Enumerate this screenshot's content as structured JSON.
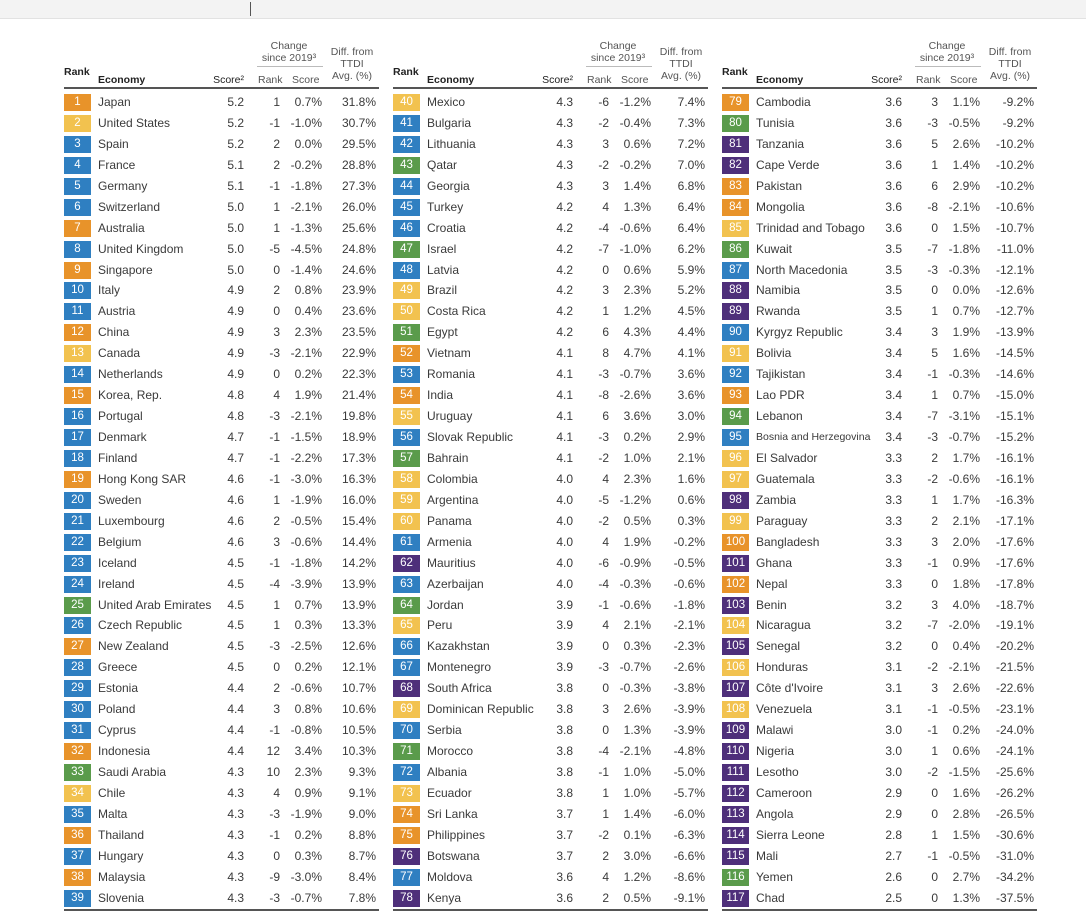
{
  "headers": {
    "rank": "Rank",
    "economy": "Economy",
    "score": "Score²",
    "change_group": [
      "Change",
      "since 2019³"
    ],
    "change_rank": "Rank",
    "change_score": "Score",
    "diff_group": [
      "Diff. from",
      "TTDI",
      "Avg. (%)"
    ]
  },
  "colors": {
    "orange": "#e8932a",
    "yellow": "#f2c24f",
    "blue": "#2f7fc1",
    "green": "#5a9b4b",
    "purple": "#4e2f7a"
  },
  "columns": [
    [
      [
        "1",
        "Japan",
        "5.2",
        "1",
        "0.7%",
        "31.8%",
        "orange"
      ],
      [
        "2",
        "United States",
        "5.2",
        "-1",
        "-1.0%",
        "30.7%",
        "yellow"
      ],
      [
        "3",
        "Spain",
        "5.2",
        "2",
        "0.0%",
        "29.5%",
        "blue"
      ],
      [
        "4",
        "France",
        "5.1",
        "2",
        "-0.2%",
        "28.8%",
        "blue"
      ],
      [
        "5",
        "Germany",
        "5.1",
        "-1",
        "-1.8%",
        "27.3%",
        "blue"
      ],
      [
        "6",
        "Switzerland",
        "5.0",
        "1",
        "-2.1%",
        "26.0%",
        "blue"
      ],
      [
        "7",
        "Australia",
        "5.0",
        "1",
        "-1.3%",
        "25.6%",
        "orange"
      ],
      [
        "8",
        "United Kingdom",
        "5.0",
        "-5",
        "-4.5%",
        "24.8%",
        "blue"
      ],
      [
        "9",
        "Singapore",
        "5.0",
        "0",
        "-1.4%",
        "24.6%",
        "orange"
      ],
      [
        "10",
        "Italy",
        "4.9",
        "2",
        "0.8%",
        "23.9%",
        "blue"
      ],
      [
        "11",
        "Austria",
        "4.9",
        "0",
        "0.4%",
        "23.6%",
        "blue"
      ],
      [
        "12",
        "China",
        "4.9",
        "3",
        "2.3%",
        "23.5%",
        "orange"
      ],
      [
        "13",
        "Canada",
        "4.9",
        "-3",
        "-2.1%",
        "22.9%",
        "yellow"
      ],
      [
        "14",
        "Netherlands",
        "4.9",
        "0",
        "0.2%",
        "22.3%",
        "blue"
      ],
      [
        "15",
        "Korea, Rep.",
        "4.8",
        "4",
        "1.9%",
        "21.4%",
        "orange"
      ],
      [
        "16",
        "Portugal",
        "4.8",
        "-3",
        "-2.1%",
        "19.8%",
        "blue"
      ],
      [
        "17",
        "Denmark",
        "4.7",
        "-1",
        "-1.5%",
        "18.9%",
        "blue"
      ],
      [
        "18",
        "Finland",
        "4.7",
        "-1",
        "-2.2%",
        "17.3%",
        "blue"
      ],
      [
        "19",
        "Hong Kong SAR",
        "4.6",
        "-1",
        "-3.0%",
        "16.3%",
        "orange"
      ],
      [
        "20",
        "Sweden",
        "4.6",
        "1",
        "-1.9%",
        "16.0%",
        "blue"
      ],
      [
        "21",
        "Luxembourg",
        "4.6",
        "2",
        "-0.5%",
        "15.4%",
        "blue"
      ],
      [
        "22",
        "Belgium",
        "4.6",
        "3",
        "-0.6%",
        "14.4%",
        "blue"
      ],
      [
        "23",
        "Iceland",
        "4.5",
        "-1",
        "-1.8%",
        "14.2%",
        "blue"
      ],
      [
        "24",
        "Ireland",
        "4.5",
        "-4",
        "-3.9%",
        "13.9%",
        "blue"
      ],
      [
        "25",
        "United Arab Emirates",
        "4.5",
        "1",
        "0.7%",
        "13.9%",
        "green"
      ],
      [
        "26",
        "Czech Republic",
        "4.5",
        "1",
        "0.3%",
        "13.3%",
        "blue"
      ],
      [
        "27",
        "New Zealand",
        "4.5",
        "-3",
        "-2.5%",
        "12.6%",
        "orange"
      ],
      [
        "28",
        "Greece",
        "4.5",
        "0",
        "0.2%",
        "12.1%",
        "blue"
      ],
      [
        "29",
        "Estonia",
        "4.4",
        "2",
        "-0.6%",
        "10.7%",
        "blue"
      ],
      [
        "30",
        "Poland",
        "4.4",
        "3",
        "0.8%",
        "10.6%",
        "blue"
      ],
      [
        "31",
        "Cyprus",
        "4.4",
        "-1",
        "-0.8%",
        "10.5%",
        "blue"
      ],
      [
        "32",
        "Indonesia",
        "4.4",
        "12",
        "3.4%",
        "10.3%",
        "orange"
      ],
      [
        "33",
        "Saudi Arabia",
        "4.3",
        "10",
        "2.3%",
        "9.3%",
        "green"
      ],
      [
        "34",
        "Chile",
        "4.3",
        "4",
        "0.9%",
        "9.1%",
        "yellow"
      ],
      [
        "35",
        "Malta",
        "4.3",
        "-3",
        "-1.9%",
        "9.0%",
        "blue"
      ],
      [
        "36",
        "Thailand",
        "4.3",
        "-1",
        "0.2%",
        "8.8%",
        "orange"
      ],
      [
        "37",
        "Hungary",
        "4.3",
        "0",
        "0.3%",
        "8.7%",
        "blue"
      ],
      [
        "38",
        "Malaysia",
        "4.3",
        "-9",
        "-3.0%",
        "8.4%",
        "orange"
      ],
      [
        "39",
        "Slovenia",
        "4.3",
        "-3",
        "-0.7%",
        "7.8%",
        "blue"
      ]
    ],
    [
      [
        "40",
        "Mexico",
        "4.3",
        "-6",
        "-1.2%",
        "7.4%",
        "yellow"
      ],
      [
        "41",
        "Bulgaria",
        "4.3",
        "-2",
        "-0.4%",
        "7.3%",
        "blue"
      ],
      [
        "42",
        "Lithuania",
        "4.3",
        "3",
        "0.6%",
        "7.2%",
        "blue"
      ],
      [
        "43",
        "Qatar",
        "4.3",
        "-2",
        "-0.2%",
        "7.0%",
        "green"
      ],
      [
        "44",
        "Georgia",
        "4.3",
        "3",
        "1.4%",
        "6.8%",
        "blue"
      ],
      [
        "45",
        "Turkey",
        "4.2",
        "4",
        "1.3%",
        "6.4%",
        "blue"
      ],
      [
        "46",
        "Croatia",
        "4.2",
        "-4",
        "-0.6%",
        "6.4%",
        "blue"
      ],
      [
        "47",
        "Israel",
        "4.2",
        "-7",
        "-1.0%",
        "6.2%",
        "green"
      ],
      [
        "48",
        "Latvia",
        "4.2",
        "0",
        "0.6%",
        "5.9%",
        "blue"
      ],
      [
        "49",
        "Brazil",
        "4.2",
        "3",
        "2.3%",
        "5.2%",
        "yellow"
      ],
      [
        "50",
        "Costa Rica",
        "4.2",
        "1",
        "1.2%",
        "4.5%",
        "yellow"
      ],
      [
        "51",
        "Egypt",
        "4.2",
        "6",
        "4.3%",
        "4.4%",
        "green"
      ],
      [
        "52",
        "Vietnam",
        "4.1",
        "8",
        "4.7%",
        "4.1%",
        "orange"
      ],
      [
        "53",
        "Romania",
        "4.1",
        "-3",
        "-0.7%",
        "3.6%",
        "blue"
      ],
      [
        "54",
        "India",
        "4.1",
        "-8",
        "-2.6%",
        "3.6%",
        "orange"
      ],
      [
        "55",
        "Uruguay",
        "4.1",
        "6",
        "3.6%",
        "3.0%",
        "yellow"
      ],
      [
        "56",
        "Slovak Republic",
        "4.1",
        "-3",
        "0.2%",
        "2.9%",
        "blue"
      ],
      [
        "57",
        "Bahrain",
        "4.1",
        "-2",
        "1.0%",
        "2.1%",
        "green"
      ],
      [
        "58",
        "Colombia",
        "4.0",
        "4",
        "2.3%",
        "1.6%",
        "yellow"
      ],
      [
        "59",
        "Argentina",
        "4.0",
        "-5",
        "-1.2%",
        "0.6%",
        "yellow"
      ],
      [
        "60",
        "Panama",
        "4.0",
        "-2",
        "0.5%",
        "0.3%",
        "yellow"
      ],
      [
        "61",
        "Armenia",
        "4.0",
        "4",
        "1.9%",
        "-0.2%",
        "blue"
      ],
      [
        "62",
        "Mauritius",
        "4.0",
        "-6",
        "-0.9%",
        "-0.5%",
        "purple"
      ],
      [
        "63",
        "Azerbaijan",
        "4.0",
        "-4",
        "-0.3%",
        "-0.6%",
        "blue"
      ],
      [
        "64",
        "Jordan",
        "3.9",
        "-1",
        "-0.6%",
        "-1.8%",
        "green"
      ],
      [
        "65",
        "Peru",
        "3.9",
        "4",
        "2.1%",
        "-2.1%",
        "yellow"
      ],
      [
        "66",
        "Kazakhstan",
        "3.9",
        "0",
        "0.3%",
        "-2.3%",
        "blue"
      ],
      [
        "67",
        "Montenegro",
        "3.9",
        "-3",
        "-0.7%",
        "-2.6%",
        "blue"
      ],
      [
        "68",
        "South Africa",
        "3.8",
        "0",
        "-0.3%",
        "-3.8%",
        "purple"
      ],
      [
        "69",
        "Dominican Republic",
        "3.8",
        "3",
        "2.6%",
        "-3.9%",
        "yellow"
      ],
      [
        "70",
        "Serbia",
        "3.8",
        "0",
        "1.3%",
        "-3.9%",
        "blue"
      ],
      [
        "71",
        "Morocco",
        "3.8",
        "-4",
        "-2.1%",
        "-4.8%",
        "green"
      ],
      [
        "72",
        "Albania",
        "3.8",
        "-1",
        "1.0%",
        "-5.0%",
        "blue"
      ],
      [
        "73",
        "Ecuador",
        "3.8",
        "1",
        "1.0%",
        "-5.7%",
        "yellow"
      ],
      [
        "74",
        "Sri Lanka",
        "3.7",
        "1",
        "1.4%",
        "-6.0%",
        "orange"
      ],
      [
        "75",
        "Philippines",
        "3.7",
        "-2",
        "0.1%",
        "-6.3%",
        "orange"
      ],
      [
        "76",
        "Botswana",
        "3.7",
        "2",
        "3.0%",
        "-6.6%",
        "purple"
      ],
      [
        "77",
        "Moldova",
        "3.6",
        "4",
        "1.2%",
        "-8.6%",
        "blue"
      ],
      [
        "78",
        "Kenya",
        "3.6",
        "2",
        "0.5%",
        "-9.1%",
        "purple"
      ]
    ],
    [
      [
        "79",
        "Cambodia",
        "3.6",
        "3",
        "1.1%",
        "-9.2%",
        "orange"
      ],
      [
        "80",
        "Tunisia",
        "3.6",
        "-3",
        "-0.5%",
        "-9.2%",
        "green"
      ],
      [
        "81",
        "Tanzania",
        "3.6",
        "5",
        "2.6%",
        "-10.2%",
        "purple"
      ],
      [
        "82",
        "Cape Verde",
        "3.6",
        "1",
        "1.4%",
        "-10.2%",
        "purple"
      ],
      [
        "83",
        "Pakistan",
        "3.6",
        "6",
        "2.9%",
        "-10.2%",
        "orange"
      ],
      [
        "84",
        "Mongolia",
        "3.6",
        "-8",
        "-2.1%",
        "-10.6%",
        "orange"
      ],
      [
        "85",
        "Trinidad and Tobago",
        "3.6",
        "0",
        "1.5%",
        "-10.7%",
        "yellow"
      ],
      [
        "86",
        "Kuwait",
        "3.5",
        "-7",
        "-1.8%",
        "-11.0%",
        "green"
      ],
      [
        "87",
        "North Macedonia",
        "3.5",
        "-3",
        "-0.3%",
        "-12.1%",
        "blue"
      ],
      [
        "88",
        "Namibia",
        "3.5",
        "0",
        "0.0%",
        "-12.6%",
        "purple"
      ],
      [
        "89",
        "Rwanda",
        "3.5",
        "1",
        "0.7%",
        "-12.7%",
        "purple"
      ],
      [
        "90",
        "Kyrgyz Republic",
        "3.4",
        "3",
        "1.9%",
        "-13.9%",
        "blue"
      ],
      [
        "91",
        "Bolivia",
        "3.4",
        "5",
        "1.6%",
        "-14.5%",
        "yellow"
      ],
      [
        "92",
        "Tajikistan",
        "3.4",
        "-1",
        "-0.3%",
        "-14.6%",
        "blue"
      ],
      [
        "93",
        "Lao PDR",
        "3.4",
        "1",
        "0.7%",
        "-15.0%",
        "orange"
      ],
      [
        "94",
        "Lebanon",
        "3.4",
        "-7",
        "-3.1%",
        "-15.1%",
        "green"
      ],
      [
        "95",
        "Bosnia and Herzegovina",
        "3.4",
        "-3",
        "-0.7%",
        "-15.2%",
        "blue"
      ],
      [
        "96",
        "El Salvador",
        "3.3",
        "2",
        "1.7%",
        "-16.1%",
        "yellow"
      ],
      [
        "97",
        "Guatemala",
        "3.3",
        "-2",
        "-0.6%",
        "-16.1%",
        "yellow"
      ],
      [
        "98",
        "Zambia",
        "3.3",
        "1",
        "1.7%",
        "-16.3%",
        "purple"
      ],
      [
        "99",
        "Paraguay",
        "3.3",
        "2",
        "2.1%",
        "-17.1%",
        "yellow"
      ],
      [
        "100",
        "Bangladesh",
        "3.3",
        "3",
        "2.0%",
        "-17.6%",
        "orange"
      ],
      [
        "101",
        "Ghana",
        "3.3",
        "-1",
        "0.9%",
        "-17.6%",
        "purple"
      ],
      [
        "102",
        "Nepal",
        "3.3",
        "0",
        "1.8%",
        "-17.8%",
        "orange"
      ],
      [
        "103",
        "Benin",
        "3.2",
        "3",
        "4.0%",
        "-18.7%",
        "purple"
      ],
      [
        "104",
        "Nicaragua",
        "3.2",
        "-7",
        "-2.0%",
        "-19.1%",
        "yellow"
      ],
      [
        "105",
        "Senegal",
        "3.2",
        "0",
        "0.4%",
        "-20.2%",
        "purple"
      ],
      [
        "106",
        "Honduras",
        "3.1",
        "-2",
        "-2.1%",
        "-21.5%",
        "yellow"
      ],
      [
        "107",
        "Côte d'Ivoire",
        "3.1",
        "3",
        "2.6%",
        "-22.6%",
        "purple"
      ],
      [
        "108",
        "Venezuela",
        "3.1",
        "-1",
        "-0.5%",
        "-23.1%",
        "yellow"
      ],
      [
        "109",
        "Malawi",
        "3.0",
        "-1",
        "0.2%",
        "-24.0%",
        "purple"
      ],
      [
        "110",
        "Nigeria",
        "3.0",
        "1",
        "0.6%",
        "-24.1%",
        "purple"
      ],
      [
        "111",
        "Lesotho",
        "3.0",
        "-2",
        "-1.5%",
        "-25.6%",
        "purple"
      ],
      [
        "112",
        "Cameroon",
        "2.9",
        "0",
        "1.6%",
        "-26.2%",
        "purple"
      ],
      [
        "113",
        "Angola",
        "2.9",
        "0",
        "2.8%",
        "-26.5%",
        "purple"
      ],
      [
        "114",
        "Sierra Leone",
        "2.8",
        "1",
        "1.5%",
        "-30.6%",
        "purple"
      ],
      [
        "115",
        "Mali",
        "2.7",
        "-1",
        "-0.5%",
        "-31.0%",
        "purple"
      ],
      [
        "116",
        "Yemen",
        "2.6",
        "0",
        "2.7%",
        "-34.2%",
        "green"
      ],
      [
        "117",
        "Chad",
        "2.5",
        "0",
        "1.3%",
        "-37.5%",
        "purple"
      ]
    ]
  ]
}
